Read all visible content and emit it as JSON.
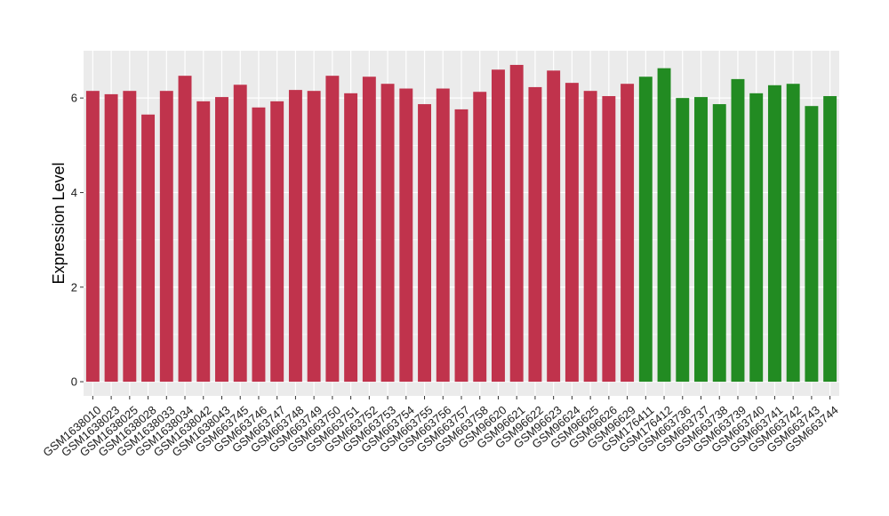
{
  "chart_data": {
    "type": "bar",
    "title": "",
    "xlabel": "",
    "ylabel": "Expression Level",
    "ylim": [
      -0.3,
      7.0
    ],
    "yticks": [
      0,
      2,
      4,
      6
    ],
    "grid": true,
    "legend": "none",
    "panel_background": "#ebebeb",
    "gridline_color": "#ffffff",
    "categories": [
      "GSM1638010",
      "GSM1638023",
      "GSM1638025",
      "GSM1638028",
      "GSM1638033",
      "GSM1638034",
      "GSM1638042",
      "GSM1638043",
      "GSM663745",
      "GSM663746",
      "GSM663747",
      "GSM663748",
      "GSM663749",
      "GSM663750",
      "GSM663751",
      "GSM663752",
      "GSM663753",
      "GSM663754",
      "GSM663755",
      "GSM663756",
      "GSM663757",
      "GSM663758",
      "GSM96620",
      "GSM96621",
      "GSM96622",
      "GSM96623",
      "GSM96624",
      "GSM96625",
      "GSM96626",
      "GSM96629",
      "GSM176411",
      "GSM176412",
      "GSM663736",
      "GSM663737",
      "GSM663738",
      "GSM663739",
      "GSM663740",
      "GSM663741",
      "GSM663742",
      "GSM663743",
      "GSM663744"
    ],
    "values": [
      6.15,
      6.08,
      6.15,
      5.65,
      6.15,
      6.47,
      5.93,
      6.02,
      6.28,
      5.8,
      5.93,
      6.17,
      6.15,
      6.47,
      6.1,
      6.45,
      6.3,
      6.2,
      5.87,
      6.2,
      5.76,
      6.13,
      6.6,
      6.7,
      6.23,
      6.58,
      6.32,
      6.15,
      6.04,
      6.3,
      6.45,
      6.63,
      6.0,
      6.02,
      5.87,
      6.4,
      6.1,
      6.27,
      6.3,
      5.83,
      6.04
    ],
    "colors": [
      "#c0334c",
      "#c0334c",
      "#c0334c",
      "#c0334c",
      "#c0334c",
      "#c0334c",
      "#c0334c",
      "#c0334c",
      "#c0334c",
      "#c0334c",
      "#c0334c",
      "#c0334c",
      "#c0334c",
      "#c0334c",
      "#c0334c",
      "#c0334c",
      "#c0334c",
      "#c0334c",
      "#c0334c",
      "#c0334c",
      "#c0334c",
      "#c0334c",
      "#c0334c",
      "#c0334c",
      "#c0334c",
      "#c0334c",
      "#c0334c",
      "#c0334c",
      "#c0334c",
      "#c0334c",
      "#228b22",
      "#228b22",
      "#228b22",
      "#228b22",
      "#228b22",
      "#228b22",
      "#228b22",
      "#228b22",
      "#228b22",
      "#228b22",
      "#228b22"
    ]
  }
}
